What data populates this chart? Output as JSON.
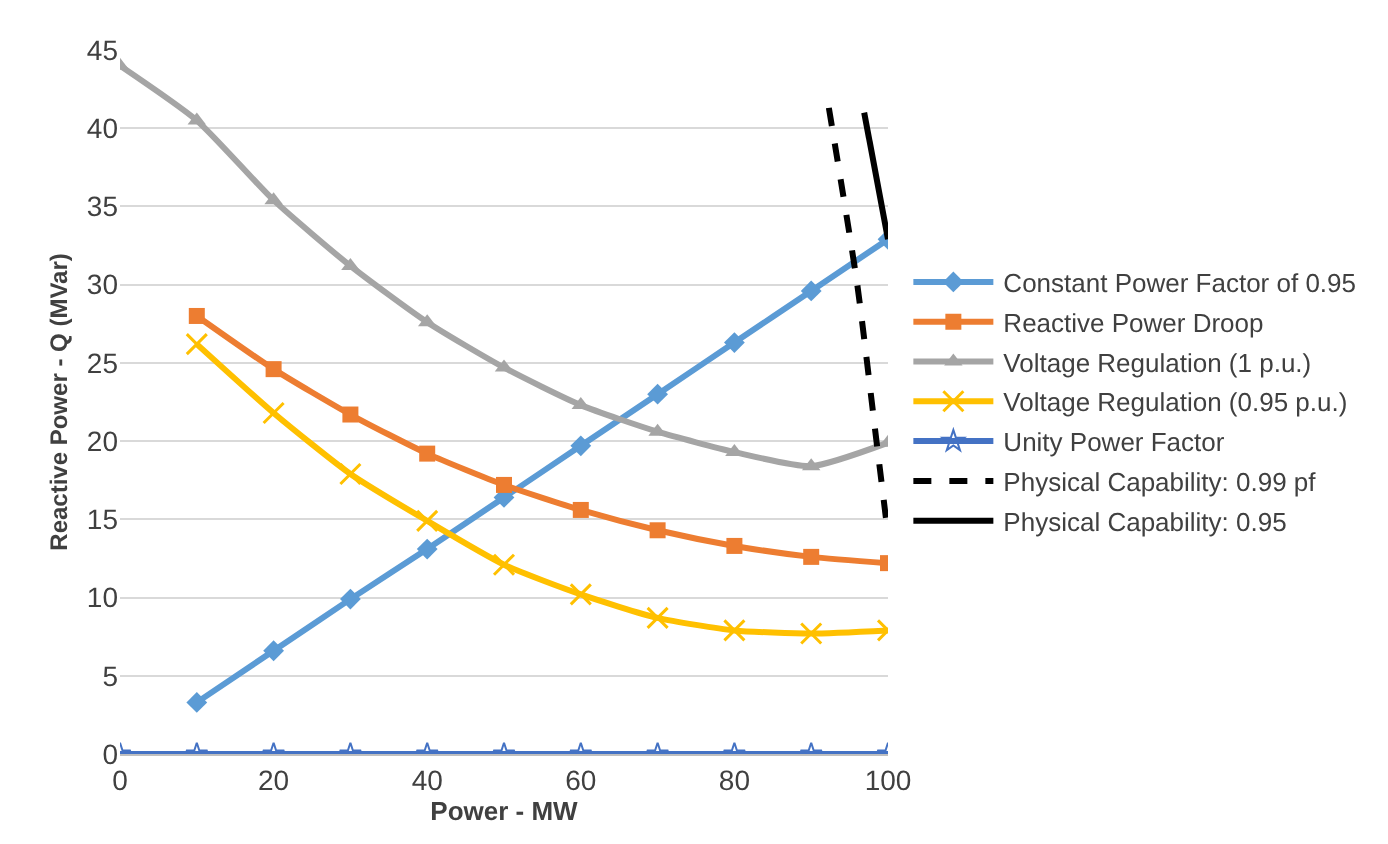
{
  "chart_data": {
    "type": "line",
    "xlabel": "Power - MW",
    "ylabel": "Reactive Power - Q (MVar)",
    "x": [
      0,
      10,
      20,
      30,
      40,
      50,
      60,
      70,
      80,
      90,
      100
    ],
    "xlim": [
      0,
      100
    ],
    "xticks": [
      0,
      20,
      40,
      60,
      80,
      100
    ],
    "ylim": [
      0,
      45
    ],
    "yticks": [
      0,
      5,
      10,
      15,
      20,
      25,
      30,
      35,
      40,
      45
    ],
    "grid": "y",
    "legend": "right",
    "series": [
      {
        "name": "Constant Power Factor of 0.95",
        "color": "#5b9bd5",
        "marker": "diamond",
        "values": [
          null,
          3.3,
          6.6,
          9.9,
          13.1,
          16.4,
          19.7,
          23.0,
          26.3,
          29.6,
          32.9
        ]
      },
      {
        "name": "Reactive Power Droop",
        "color": "#ed7d31",
        "marker": "square",
        "values": [
          null,
          28.0,
          24.6,
          21.7,
          19.2,
          17.2,
          15.6,
          14.3,
          13.3,
          12.6,
          12.2
        ]
      },
      {
        "name": "Voltage Regulation (1 p.u.)",
        "color": "#a5a5a5",
        "marker": "triangle",
        "values": [
          44.0,
          40.5,
          35.4,
          31.2,
          27.6,
          24.7,
          22.3,
          20.6,
          19.3,
          18.4,
          19.9
        ]
      },
      {
        "name": "Voltage Regulation (0.95 p.u.)",
        "color": "#ffc000",
        "marker": "cross",
        "values": [
          null,
          26.2,
          21.8,
          17.9,
          14.9,
          12.1,
          10.2,
          8.7,
          7.9,
          7.7,
          7.9
        ]
      },
      {
        "name": "Unity Power Factor",
        "color": "#4472c4",
        "marker": "star",
        "values": [
          0,
          0,
          0,
          0,
          0,
          0,
          0,
          0,
          0,
          0,
          0
        ]
      },
      {
        "name": "Physical Capability: 0.99 pf",
        "color": "#000000",
        "marker": "none",
        "line_style": "dashed",
        "x": [
          92.3,
          96,
          98.5,
          100
        ],
        "values": [
          41.3,
          30,
          20,
          14
        ]
      },
      {
        "name": "Physical Capability: 0.95",
        "color": "#000000",
        "marker": "none",
        "line_style": "solid",
        "x": [
          96.9,
          100
        ],
        "values": [
          41.0,
          32.9
        ]
      }
    ]
  }
}
